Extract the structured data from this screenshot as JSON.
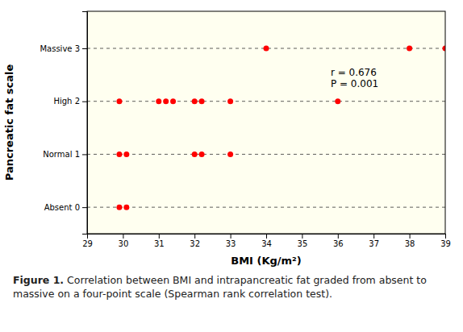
{
  "chart_data": {
    "type": "scatter",
    "x_label": "BMI (Kg/m²)",
    "y_label": "Pancreatic fat scale",
    "annotation": "r = 0.676\nP = 0.001",
    "caption_label": "Figure 1.",
    "caption": "Correlation between BMI and intrapancreatic fat graded from absent to massive on a four-point scale (Spearman rank correlation test).",
    "color": "#ff0000",
    "grid": "y",
    "xlim": [
      29,
      39
    ],
    "ylim": [
      -0.5,
      3.7
    ],
    "xticks": [
      29,
      30,
      31,
      32,
      33,
      34,
      35,
      36,
      37,
      38,
      39
    ],
    "yticks": [
      {
        "value": 0,
        "label": "Absent 0"
      },
      {
        "value": 1,
        "label": "Normal 1"
      },
      {
        "value": 2,
        "label": "High 2"
      },
      {
        "value": 3,
        "label": "Massive 3"
      }
    ],
    "x": [
      29.9,
      30.1,
      29.9,
      30.1,
      32.0,
      32.2,
      33.0,
      29.9,
      31.0,
      31.2,
      31.4,
      32.0,
      32.2,
      33.0,
      36.0,
      34.0,
      38.0,
      39.0
    ],
    "values": [
      0,
      0,
      1,
      1,
      1,
      1,
      1,
      2,
      2,
      2,
      2,
      2,
      2,
      2,
      2,
      3,
      3,
      3
    ]
  }
}
